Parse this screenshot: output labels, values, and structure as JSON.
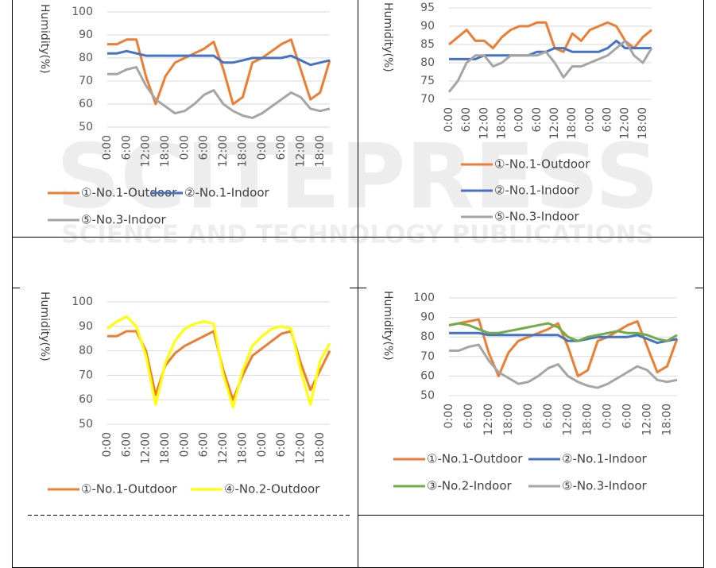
{
  "watermark": {
    "title": "SCITEPRESS",
    "subtitle": "SCIENCE AND TECHNOLOGY PUBLICATIONS"
  },
  "chart_data": [
    {
      "type": "line",
      "y_label": "Humidity(%)",
      "x": [
        0,
        3,
        6,
        9,
        12,
        15,
        18,
        21,
        24,
        27,
        30,
        33,
        36,
        39,
        42,
        45,
        48,
        51,
        54,
        57,
        60,
        63,
        66,
        69
      ],
      "xlim": [
        0,
        69
      ],
      "xticks": [
        {
          "value": 0,
          "label": "0:00"
        },
        {
          "value": 6,
          "label": "6:00"
        },
        {
          "value": 12,
          "label": "12:00"
        },
        {
          "value": 18,
          "label": "18:00"
        },
        {
          "value": 24,
          "label": "0:00"
        },
        {
          "value": 30,
          "label": "6:00"
        },
        {
          "value": 36,
          "label": "12:00"
        },
        {
          "value": 42,
          "label": "18:00"
        },
        {
          "value": 48,
          "label": "0:00"
        },
        {
          "value": 54,
          "label": "6:00"
        },
        {
          "value": 60,
          "label": "12:00"
        },
        {
          "value": 66,
          "label": "18:00"
        }
      ],
      "ylim": [
        50,
        100
      ],
      "yticks": [
        50,
        60,
        70,
        80,
        90,
        100
      ],
      "grid": true,
      "series": [
        {
          "name": "①-No.1-Outdoor",
          "color": "#ED7D31",
          "values": [
            86,
            86,
            88,
            88,
            72,
            60,
            72,
            78,
            80,
            82,
            84,
            87,
            75,
            60,
            63,
            78,
            80,
            83,
            86,
            88,
            75,
            62,
            65,
            79
          ]
        },
        {
          "name": "②-No.1-Indoor",
          "color": "#4472C4",
          "values": [
            82,
            82,
            83,
            82,
            81,
            81,
            81,
            81,
            81,
            81,
            81,
            81,
            78,
            78,
            79,
            80,
            80,
            80,
            80,
            81,
            79,
            77,
            78,
            79
          ]
        },
        {
          "name": "⑤-No.3-Indoor",
          "color": "#A5A5A5",
          "values": [
            73,
            73,
            75,
            76,
            68,
            62,
            59,
            56,
            57,
            60,
            64,
            66,
            60,
            57,
            55,
            54,
            56,
            59,
            62,
            65,
            63,
            58,
            57,
            58
          ]
        }
      ]
    },
    {
      "type": "line",
      "y_label": "Humidity(%)",
      "x": [
        0,
        3,
        6,
        9,
        12,
        15,
        18,
        21,
        24,
        27,
        30,
        33,
        36,
        39,
        42,
        45,
        48,
        51,
        54,
        57,
        60,
        63,
        66,
        69
      ],
      "xlim": [
        0,
        69
      ],
      "xticks": [
        {
          "value": 0,
          "label": "0:00"
        },
        {
          "value": 6,
          "label": "6:00"
        },
        {
          "value": 12,
          "label": "12:00"
        },
        {
          "value": 18,
          "label": "18:00"
        },
        {
          "value": 24,
          "label": "0:00"
        },
        {
          "value": 30,
          "label": "6:00"
        },
        {
          "value": 36,
          "label": "12:00"
        },
        {
          "value": 42,
          "label": "18:00"
        },
        {
          "value": 48,
          "label": "0:00"
        },
        {
          "value": 54,
          "label": "6:00"
        },
        {
          "value": 60,
          "label": "12:00"
        },
        {
          "value": 66,
          "label": "18:00"
        }
      ],
      "ylim": [
        70,
        95
      ],
      "yticks": [
        70,
        75,
        80,
        85,
        90,
        95
      ],
      "grid": true,
      "series": [
        {
          "name": "①-No.1-Outdoor",
          "color": "#ED7D31",
          "values": [
            85,
            87,
            89,
            86,
            86,
            84,
            87,
            89,
            90,
            90,
            91,
            91,
            84,
            83,
            88,
            86,
            89,
            90,
            91,
            90,
            86,
            84,
            87,
            89
          ]
        },
        {
          "name": "②-No.1-Indoor",
          "color": "#4472C4",
          "values": [
            81,
            81,
            81,
            81,
            82,
            82,
            82,
            82,
            82,
            82,
            83,
            83,
            84,
            84,
            83,
            83,
            83,
            83,
            84,
            86,
            84,
            84,
            84,
            84
          ]
        },
        {
          "name": "⑤-No.3-Indoor",
          "color": "#A5A5A5",
          "values": [
            72,
            75,
            80,
            82,
            82,
            79,
            80,
            82,
            82,
            82,
            82,
            83,
            80,
            76,
            79,
            79,
            80,
            81,
            82,
            84,
            86,
            82,
            80,
            84
          ]
        }
      ]
    },
    {
      "type": "line",
      "y_label": "Humidity(%)",
      "x": [
        0,
        3,
        6,
        9,
        12,
        15,
        18,
        21,
        24,
        27,
        30,
        33,
        36,
        39,
        42,
        45,
        48,
        51,
        54,
        57,
        60,
        63,
        66,
        69
      ],
      "xlim": [
        0,
        69
      ],
      "xticks": [
        {
          "value": 0,
          "label": "0:00"
        },
        {
          "value": 6,
          "label": "6:00"
        },
        {
          "value": 12,
          "label": "12:00"
        },
        {
          "value": 18,
          "label": "18:00"
        },
        {
          "value": 24,
          "label": "0:00"
        },
        {
          "value": 30,
          "label": "6:00"
        },
        {
          "value": 36,
          "label": "12:00"
        },
        {
          "value": 42,
          "label": "18:00"
        },
        {
          "value": 48,
          "label": "0:00"
        },
        {
          "value": 54,
          "label": "6:00"
        },
        {
          "value": 60,
          "label": "12:00"
        },
        {
          "value": 66,
          "label": "18:00"
        }
      ],
      "ylim": [
        50,
        100
      ],
      "yticks": [
        50,
        60,
        70,
        80,
        90,
        100
      ],
      "grid": true,
      "series": [
        {
          "name": "①-No.1-Outdoor",
          "color": "#ED7D31",
          "values": [
            86,
            86,
            88,
            88,
            80,
            62,
            74,
            79,
            82,
            84,
            86,
            88,
            72,
            60,
            70,
            78,
            81,
            84,
            87,
            88,
            75,
            64,
            72,
            80
          ]
        },
        {
          "name": "④-No.2-Outdoor",
          "color": "#FFFF00",
          "values": [
            89,
            92,
            94,
            90,
            78,
            58,
            75,
            84,
            89,
            91,
            92,
            91,
            70,
            57,
            72,
            82,
            86,
            89,
            90,
            89,
            72,
            58,
            76,
            83
          ]
        }
      ]
    },
    {
      "type": "line",
      "y_label": "Humidity(%)",
      "x": [
        0,
        3,
        6,
        9,
        12,
        15,
        18,
        21,
        24,
        27,
        30,
        33,
        36,
        39,
        42,
        45,
        48,
        51,
        54,
        57,
        60,
        63,
        66,
        69
      ],
      "xlim": [
        0,
        69
      ],
      "xticks": [
        {
          "value": 0,
          "label": "0:00"
        },
        {
          "value": 6,
          "label": "6:00"
        },
        {
          "value": 12,
          "label": "12:00"
        },
        {
          "value": 18,
          "label": "18:00"
        },
        {
          "value": 24,
          "label": "0:00"
        },
        {
          "value": 30,
          "label": "6:00"
        },
        {
          "value": 36,
          "label": "12:00"
        },
        {
          "value": 42,
          "label": "18:00"
        },
        {
          "value": 48,
          "label": "0:00"
        },
        {
          "value": 54,
          "label": "6:00"
        },
        {
          "value": 60,
          "label": "12:00"
        },
        {
          "value": 66,
          "label": "18:00"
        }
      ],
      "ylim": [
        50,
        100
      ],
      "yticks": [
        50,
        60,
        70,
        80,
        90,
        100
      ],
      "grid": true,
      "series": [
        {
          "name": "①-No.1-Outdoor",
          "color": "#ED7D31",
          "values": [
            86,
            87,
            88,
            89,
            72,
            60,
            72,
            78,
            80,
            82,
            84,
            87,
            75,
            60,
            63,
            78,
            80,
            83,
            86,
            88,
            75,
            62,
            65,
            79
          ]
        },
        {
          "name": "②-No.1-Indoor",
          "color": "#4472C4",
          "values": [
            82,
            82,
            82,
            82,
            81,
            81,
            81,
            81,
            81,
            81,
            81,
            81,
            78,
            78,
            79,
            80,
            80,
            80,
            80,
            81,
            79,
            77,
            78,
            79
          ]
        },
        {
          "name": "③-No.2-Indoor",
          "color": "#70AD47",
          "values": [
            86,
            87,
            86,
            84,
            82,
            82,
            83,
            84,
            85,
            86,
            87,
            85,
            80,
            78,
            80,
            81,
            82,
            83,
            82,
            82,
            81,
            79,
            78,
            81
          ]
        },
        {
          "name": "⑤-No.3-Indoor",
          "color": "#A5A5A5",
          "values": [
            73,
            73,
            75,
            76,
            68,
            62,
            59,
            56,
            57,
            60,
            64,
            66,
            60,
            57,
            55,
            54,
            56,
            59,
            62,
            65,
            63,
            58,
            57,
            58
          ]
        }
      ]
    }
  ]
}
